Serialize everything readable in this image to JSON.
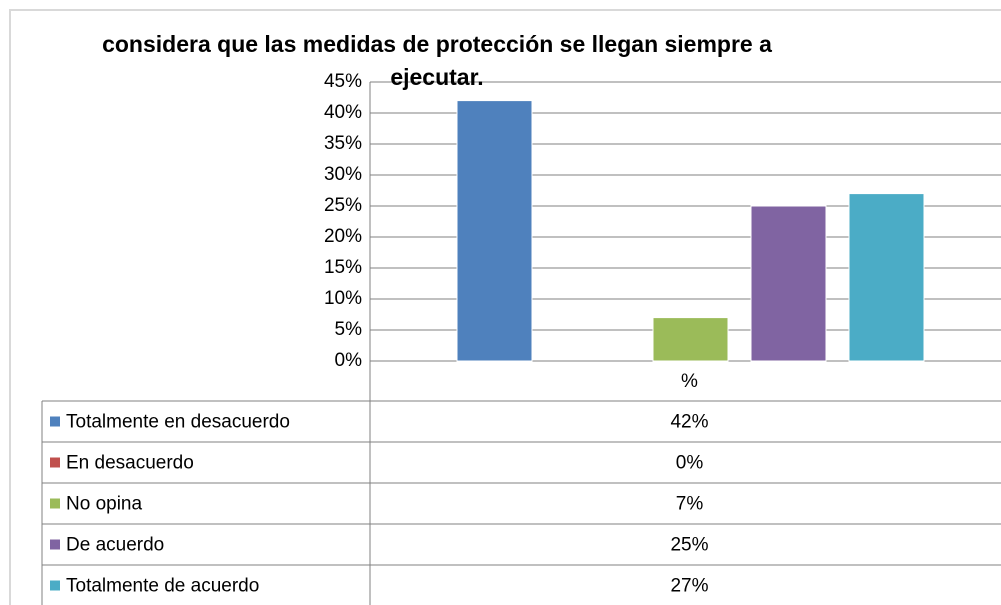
{
  "chart_data": {
    "type": "bar",
    "title": "considera que las medidas de protección se llegan siempre a ejecutar.",
    "categories": [
      "%"
    ],
    "series": [
      {
        "name": "Totalmente en desacuerdo",
        "color": "#4f81bd",
        "values": [
          42
        ],
        "value_labels": [
          "42%"
        ]
      },
      {
        "name": "En desacuerdo",
        "color": "#c0504d",
        "values": [
          0
        ],
        "value_labels": [
          "0%"
        ]
      },
      {
        "name": "No opina",
        "color": "#9bbb59",
        "values": [
          7
        ],
        "value_labels": [
          "7%"
        ]
      },
      {
        "name": "De acuerdo",
        "color": "#8064a2",
        "values": [
          25
        ],
        "value_labels": [
          "25%"
        ]
      },
      {
        "name": "Totalmente de acuerdo",
        "color": "#4bacc6",
        "values": [
          27
        ],
        "value_labels": [
          "27%"
        ]
      }
    ],
    "ylim": [
      0,
      45
    ],
    "yticks": [
      {
        "value": 0,
        "label": "0%"
      },
      {
        "value": 5,
        "label": "5%"
      },
      {
        "value": 10,
        "label": "10%"
      },
      {
        "value": 15,
        "label": "15%"
      },
      {
        "value": 20,
        "label": "20%"
      },
      {
        "value": 25,
        "label": "25%"
      },
      {
        "value": 30,
        "label": "30%"
      },
      {
        "value": 35,
        "label": "35%"
      },
      {
        "value": 40,
        "label": "40%"
      },
      {
        "value": 45,
        "label": "45%"
      }
    ],
    "grid": true,
    "legend": "table"
  }
}
